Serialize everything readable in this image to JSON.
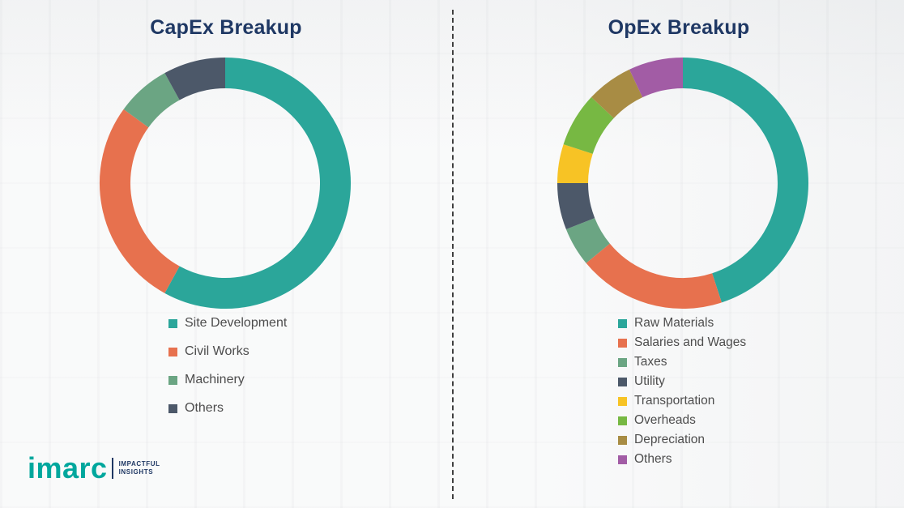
{
  "chart_data": [
    {
      "type": "donut",
      "title": "CapEx Breakup",
      "labels": [
        "Site Development",
        "Civil Works",
        "Machinery",
        "Others"
      ],
      "values": [
        58,
        27,
        7,
        8
      ],
      "colors": [
        "#2BA69A",
        "#E7714E",
        "#6BA583",
        "#4C5869"
      ],
      "legend_position": "bottom",
      "start_angle_deg": 0,
      "direction": "clockwise"
    },
    {
      "type": "donut",
      "title": "OpEx Breakup",
      "labels": [
        "Raw Materials",
        "Salaries and Wages",
        "Taxes",
        "Utility",
        "Transportation",
        "Overheads",
        "Depreciation",
        "Others"
      ],
      "values": [
        45,
        19,
        5,
        6,
        5,
        7,
        6,
        7
      ],
      "colors": [
        "#2BA69A",
        "#E7714E",
        "#6BA583",
        "#4C5869",
        "#F7C325",
        "#77B843",
        "#A88C44",
        "#A25CA5"
      ],
      "legend_position": "bottom",
      "start_angle_deg": 0,
      "direction": "clockwise"
    }
  ],
  "divider": {
    "style": "dashed-vertical"
  },
  "logo": {
    "brand": "imarc",
    "brand_color": "#00A79D",
    "tagline_line1": "IMPACTFUL",
    "tagline_line2": "INSIGHTS",
    "tagline_color": "#1F3864"
  },
  "title_color": "#1F3864"
}
